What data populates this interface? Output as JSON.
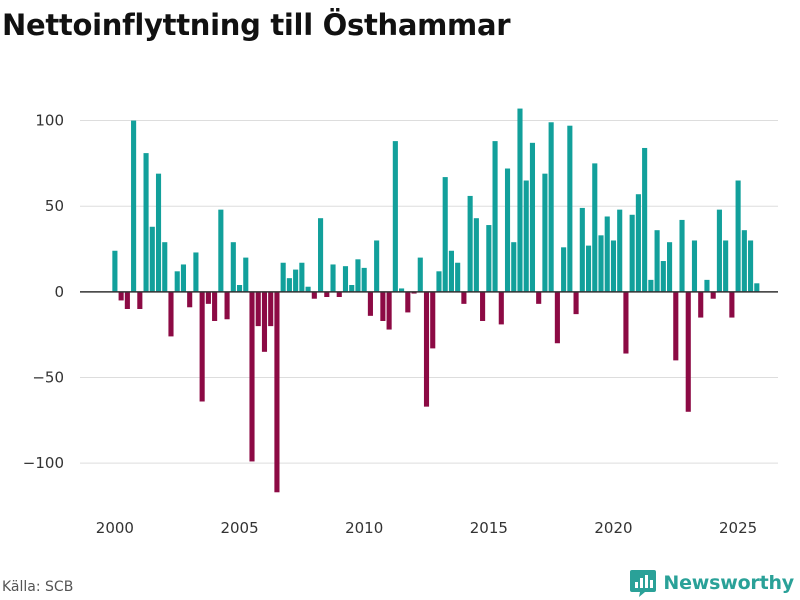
{
  "title": "Nettoinflyttning till Östhammar",
  "source": "Källa: SCB",
  "brand": {
    "name": "Newsworthy",
    "icon": "newsworthy-logo-icon"
  },
  "colors": {
    "positive": "#12a09b",
    "negative": "#8c0a44",
    "grid": "#dddddd",
    "zero": "#333333"
  },
  "chart_data": {
    "type": "bar",
    "title": "Nettoinflyttning till Östhammar",
    "xlabel": "",
    "ylabel": "",
    "ylim": [
      -125,
      112
    ],
    "xlim": [
      1998.6,
      2026.6
    ],
    "grid": true,
    "legend": "none",
    "yticks": [
      100,
      50,
      0,
      -50,
      -100
    ],
    "ytick_labels": [
      "100",
      "50",
      "0",
      "−50",
      "−100"
    ],
    "xticks": [
      2000,
      2005,
      2010,
      2015,
      2020,
      2025
    ],
    "xtick_labels": [
      "2000",
      "2005",
      "2010",
      "2015",
      "2020",
      "2025"
    ],
    "period": "quarterly, 2000 Q1 – 2025 Q4",
    "x": [
      2000.0,
      2000.25,
      2000.5,
      2000.75,
      2001.0,
      2001.25,
      2001.5,
      2001.75,
      2002.0,
      2002.25,
      2002.5,
      2002.75,
      2003.0,
      2003.25,
      2003.5,
      2003.75,
      2004.0,
      2004.25,
      2004.5,
      2004.75,
      2005.0,
      2005.25,
      2005.5,
      2005.75,
      2006.0,
      2006.25,
      2006.5,
      2006.75,
      2007.0,
      2007.25,
      2007.5,
      2007.75,
      2008.0,
      2008.25,
      2008.5,
      2008.75,
      2009.0,
      2009.25,
      2009.5,
      2009.75,
      2010.0,
      2010.25,
      2010.5,
      2010.75,
      2011.0,
      2011.25,
      2011.5,
      2011.75,
      2012.0,
      2012.25,
      2012.5,
      2012.75,
      2013.0,
      2013.25,
      2013.5,
      2013.75,
      2014.0,
      2014.25,
      2014.5,
      2014.75,
      2015.0,
      2015.25,
      2015.5,
      2015.75,
      2016.0,
      2016.25,
      2016.5,
      2016.75,
      2017.0,
      2017.25,
      2017.5,
      2017.75,
      2018.0,
      2018.25,
      2018.5,
      2018.75,
      2019.0,
      2019.25,
      2019.5,
      2019.75,
      2020.0,
      2020.25,
      2020.5,
      2020.75,
      2021.0,
      2021.25,
      2021.5,
      2021.75,
      2022.0,
      2022.25,
      2022.5,
      2022.75,
      2023.0,
      2023.25,
      2023.5,
      2023.75,
      2024.0,
      2024.25,
      2024.5,
      2024.75,
      2025.0,
      2025.25,
      2025.5,
      2025.75
    ],
    "values": [
      24,
      -5,
      -10,
      100,
      -10,
      81,
      38,
      69,
      29,
      -26,
      12,
      16,
      -9,
      23,
      -64,
      -7,
      -17,
      48,
      -16,
      29,
      4,
      20,
      -99,
      -20,
      -35,
      -20,
      -117,
      17,
      8,
      13,
      17,
      3,
      -4,
      43,
      -3,
      16,
      -3,
      15,
      4,
      19,
      14,
      -14,
      30,
      -17,
      -22,
      88,
      2,
      -12,
      -1,
      20,
      -67,
      -33,
      12,
      67,
      24,
      17,
      -7,
      56,
      43,
      -17,
      39,
      88,
      -19,
      72,
      29,
      107,
      65,
      87,
      -7,
      69,
      99,
      -30,
      26,
      97,
      -13,
      49,
      27,
      75,
      33,
      44,
      30,
      48,
      -36,
      45,
      57,
      84,
      7,
      36,
      18,
      29,
      -40,
      42,
      -70,
      30,
      -15,
      7,
      -4,
      48,
      30,
      -15,
      65,
      36,
      30,
      5
    ]
  }
}
